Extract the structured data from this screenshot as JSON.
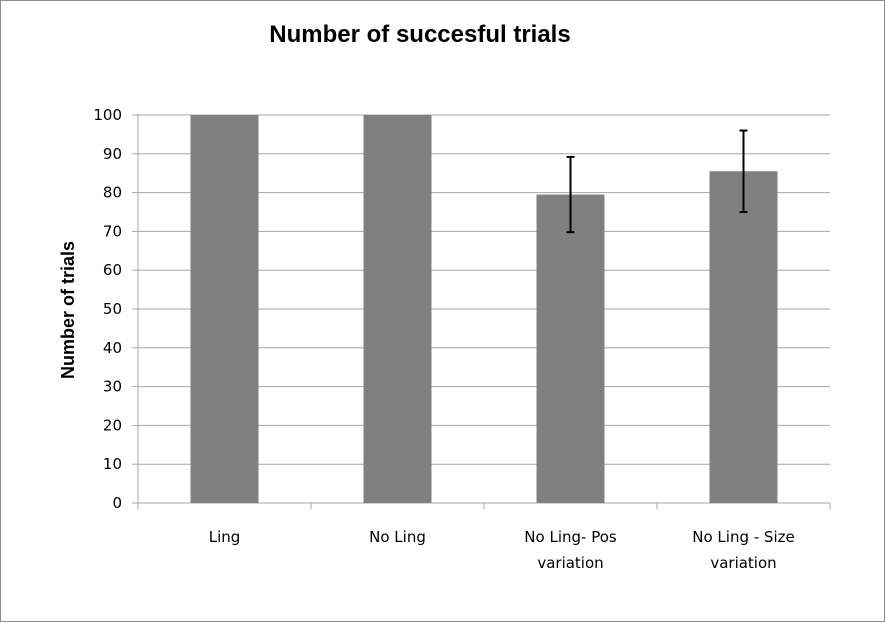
{
  "chart_data": {
    "type": "bar",
    "title": "Number of succesful trials",
    "xlabel": "",
    "ylabel": "Number of trials",
    "categories": [
      [
        "Ling"
      ],
      [
        "No Ling"
      ],
      [
        "No Ling- Pos",
        "variation"
      ],
      [
        "No Ling - Size",
        "variation"
      ]
    ],
    "values": [
      100,
      100,
      79.5,
      85.5
    ],
    "error": [
      null,
      null,
      9.7,
      10.5
    ],
    "ylim": [
      0,
      100
    ],
    "yticks": [
      "0",
      "10",
      "20",
      "30",
      "40",
      "50",
      "60",
      "70",
      "80",
      "90",
      "100"
    ],
    "grid": true,
    "bar_color": "#808080",
    "grid_color": "#a6a6a6",
    "error_color": "#000000"
  }
}
